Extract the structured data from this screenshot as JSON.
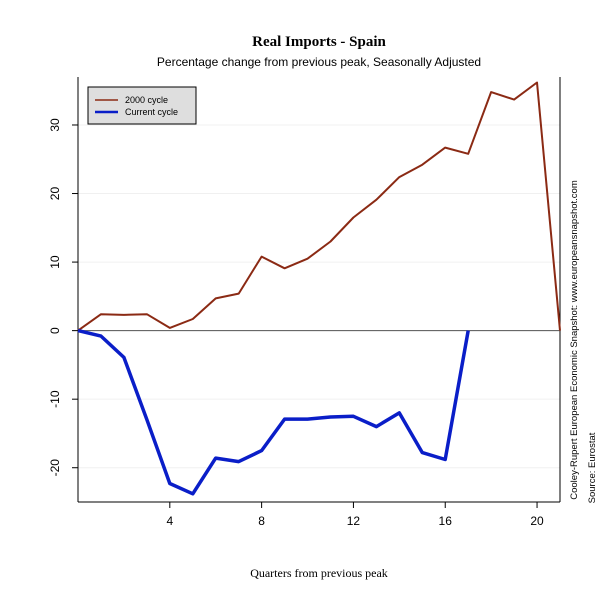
{
  "chart_data": {
    "type": "line",
    "title": "Real Imports - Spain",
    "subtitle": "Percentage change from previous peak, Seasonally Adjusted",
    "xlabel": "Quarters from previous peak",
    "ylabel": "",
    "xlim": [
      0,
      21
    ],
    "ylim": [
      -25,
      37
    ],
    "x_ticks": [
      4,
      8,
      12,
      16,
      20
    ],
    "y_ticks": [
      -20,
      -10,
      0,
      10,
      20,
      30
    ],
    "x_tick_labels": [
      "4",
      "8",
      "12",
      "16",
      "20"
    ],
    "y_tick_labels": [
      "-20",
      "-10",
      "0",
      "10",
      "20",
      "30"
    ],
    "grid": true,
    "reference_line_y": 0,
    "legend": {
      "position": "top-left",
      "entries": [
        "2000 cycle",
        "Current cycle"
      ]
    },
    "series": [
      {
        "name": "2000 cycle",
        "color": "#8b2a14",
        "x": [
          0,
          1,
          2,
          3,
          4,
          5,
          6,
          7,
          8,
          9,
          10,
          11,
          12,
          13,
          14,
          15,
          16,
          17,
          18,
          19,
          20,
          21
        ],
        "values": [
          0,
          2.4,
          2.3,
          2.4,
          0.4,
          1.7,
          4.7,
          5.4,
          10.8,
          9.1,
          10.5,
          13.0,
          16.5,
          19.1,
          22.4,
          24.2,
          26.7,
          25.8,
          34.8,
          33.7,
          36.2,
          0
        ]
      },
      {
        "name": "Current cycle",
        "color": "#0a1ec8",
        "x": [
          0,
          1,
          2,
          3,
          4,
          5,
          6,
          7,
          8,
          9,
          10,
          11,
          12,
          13,
          14,
          15,
          16,
          17
        ],
        "values": [
          0,
          -0.8,
          -3.9,
          -13.0,
          -22.3,
          -23.8,
          -18.6,
          -19.1,
          -17.5,
          -12.9,
          -12.9,
          -12.6,
          -12.5,
          -14.0,
          -12.0,
          -17.8,
          -18.8,
          0
        ]
      }
    ],
    "side_text": [
      "Cooley-Rupert European Economic Snapshot: www.europeansnapshot.com",
      "Source: Eurostat"
    ]
  }
}
